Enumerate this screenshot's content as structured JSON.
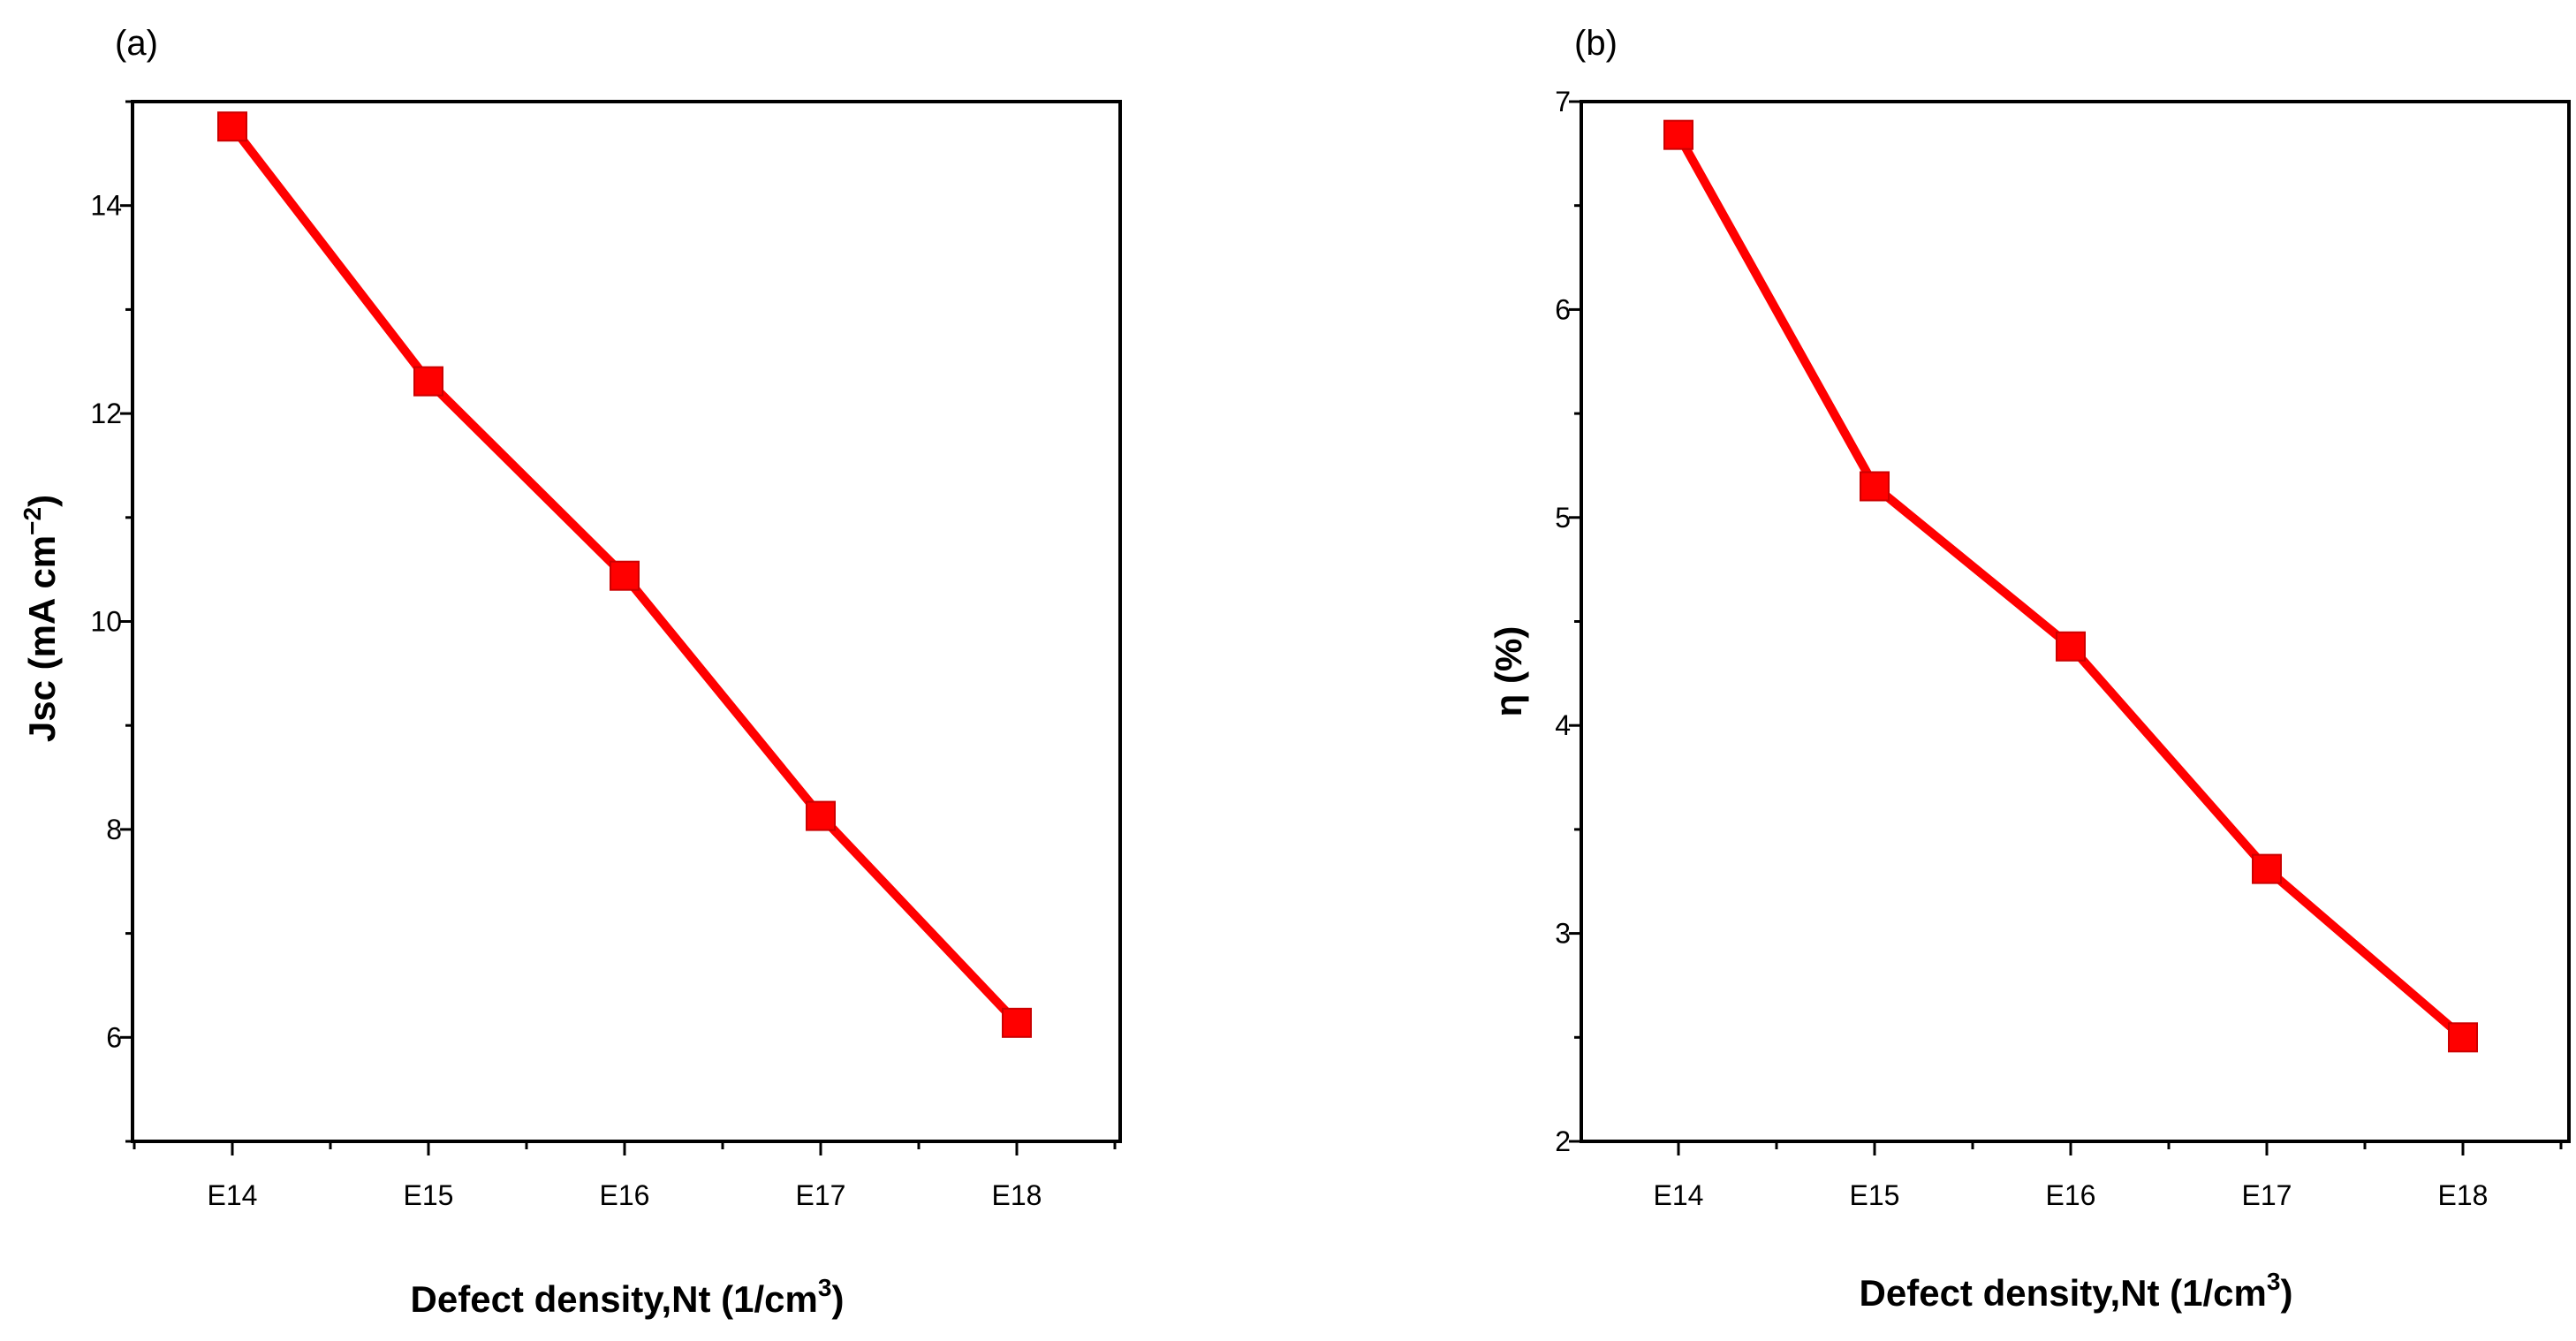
{
  "chart_data": [
    {
      "type": "line",
      "panel_label": "(a)",
      "categories": [
        "E14",
        "E15",
        "E16",
        "E17",
        "E18"
      ],
      "values": [
        14.76,
        12.31,
        10.44,
        8.13,
        6.14
      ],
      "ylabel": {
        "main": "Jsc (mA cm",
        "sup": "−2",
        "end": ")"
      },
      "xlabel": {
        "main": "Defect density,Nt (1/cm",
        "sup": "3",
        "end": ")"
      },
      "ylim": [
        5,
        15
      ],
      "yticks": [
        "6",
        "8",
        "10",
        "12",
        "14"
      ],
      "grid": false,
      "series_color": "#ff0000"
    },
    {
      "type": "line",
      "panel_label": "(b)",
      "categories": [
        "E14",
        "E15",
        "E16",
        "E17",
        "E18"
      ],
      "values": [
        6.84,
        5.15,
        4.38,
        3.31,
        2.5
      ],
      "ylabel": {
        "main": "η (%)",
        "sup": "",
        "end": ""
      },
      "xlabel": {
        "main": "Defect density,Nt (1/cm",
        "sup": "3",
        "end": ")"
      },
      "ylim": [
        2,
        7
      ],
      "yticks": [
        "2",
        "3",
        "4",
        "5",
        "6",
        "7"
      ],
      "grid": false,
      "series_color": "#ff0000"
    }
  ]
}
